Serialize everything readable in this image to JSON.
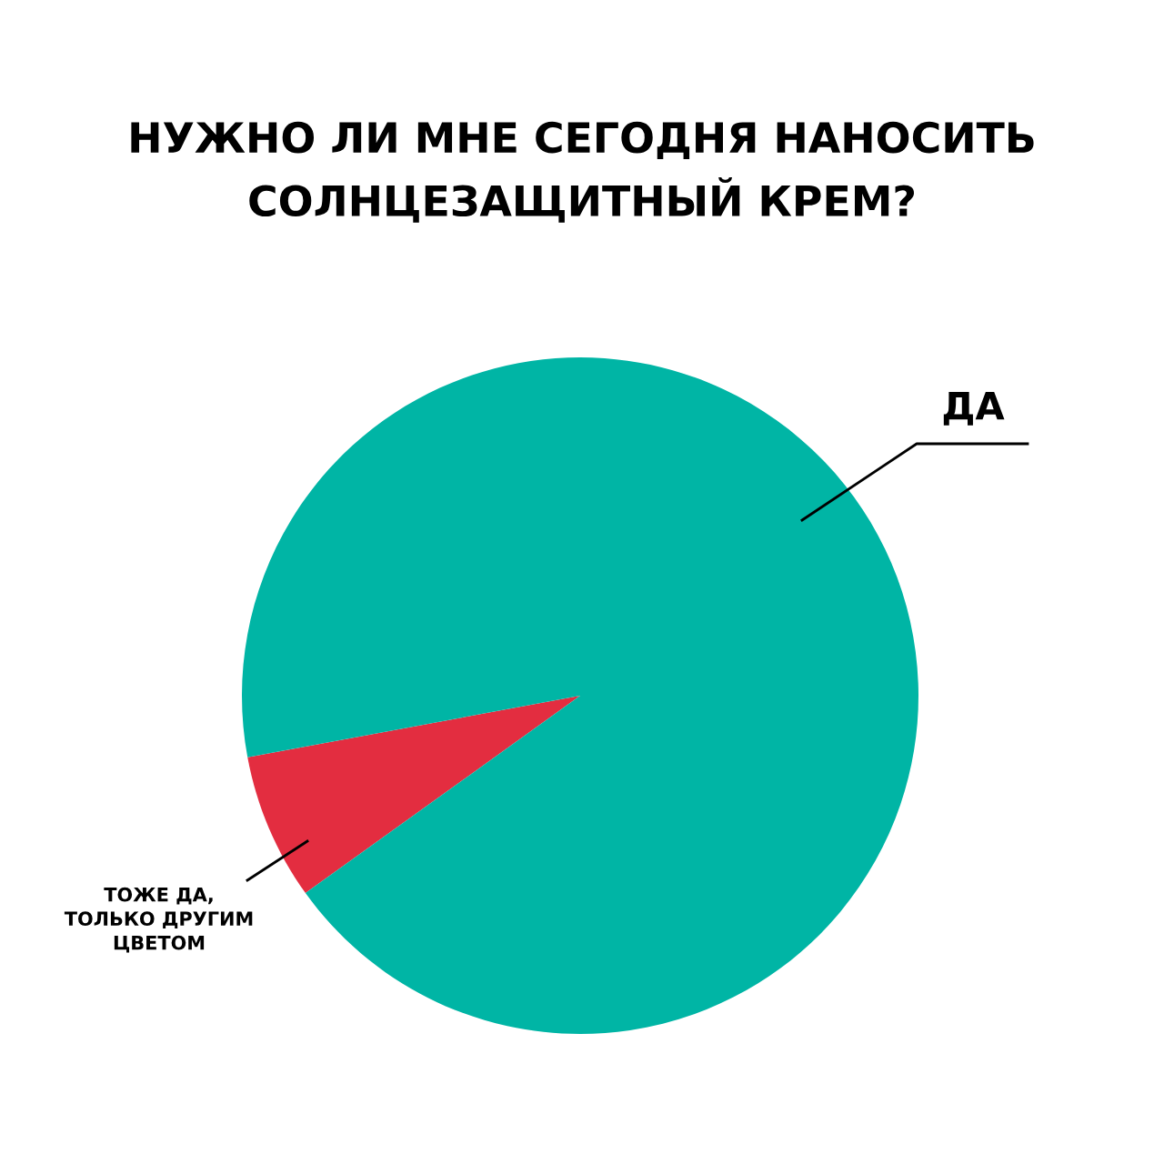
{
  "chart_data": {
    "type": "pie",
    "title": "НУЖНО ЛИ МНЕ СЕГОДНЯ НАНОСИТЬ\nСОЛНЦЕЗАЩИТНЫЙ КРЕМ?",
    "categories": [
      "ТОЖЕ ДА,\nТОЛЬКО ДРУГИМ\nЦВЕТОМ",
      "ДА"
    ],
    "values": [
      7,
      93
    ],
    "colors": [
      "#e32d40",
      "#00b5a5"
    ]
  }
}
